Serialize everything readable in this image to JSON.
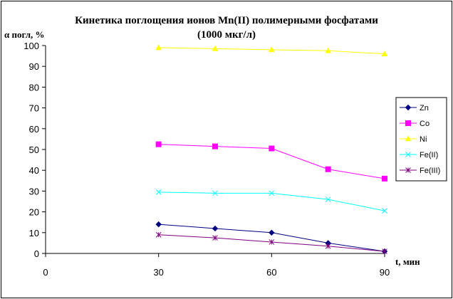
{
  "chart_data": {
    "type": "line",
    "title_line1": "Кинетика поглощения ионов Mn(II) полимерными фосфатами",
    "title_line2": "(1000 мкг/л)",
    "ylabel": "α погл, %",
    "xlabel": "t, мин",
    "x": [
      30,
      45,
      60,
      75,
      90
    ],
    "xlim": [
      0,
      90
    ],
    "xticks": [
      0,
      30,
      60,
      90
    ],
    "ylim": [
      0,
      100
    ],
    "yticks": [
      0,
      10,
      20,
      30,
      40,
      50,
      60,
      70,
      80,
      90,
      100
    ],
    "grid": false,
    "legend_position": "right",
    "series": [
      {
        "name": "Zn",
        "color": "#000080",
        "marker": "diamond",
        "values": [
          14,
          12,
          10,
          5,
          1
        ]
      },
      {
        "name": "Co",
        "color": "#ff00ff",
        "marker": "square",
        "values": [
          52.5,
          51.5,
          50.5,
          40.5,
          36
        ]
      },
      {
        "name": "Ni",
        "color": "#ffff00",
        "marker": "triangle",
        "values": [
          99,
          98.5,
          98,
          97.5,
          96
        ]
      },
      {
        "name": "Fe(II)",
        "color": "#00ffff",
        "marker": "x",
        "values": [
          29.5,
          29,
          29,
          26,
          20.5
        ]
      },
      {
        "name": "Fe(III)",
        "color": "#800080",
        "marker": "star",
        "values": [
          9,
          7.5,
          5.5,
          3.5,
          1
        ]
      }
    ]
  }
}
